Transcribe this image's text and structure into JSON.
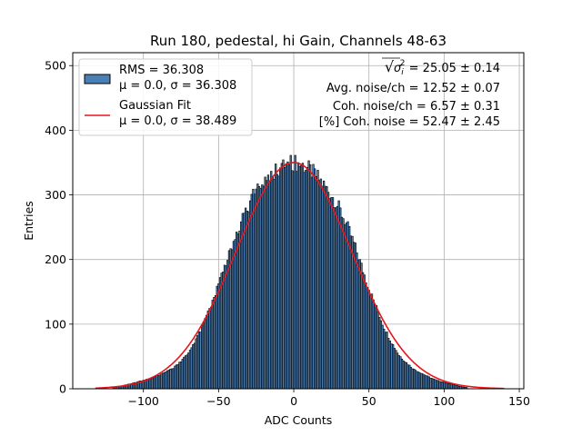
{
  "chart_data": {
    "type": "bar",
    "title": "Run 180, pedestal, hi Gain, Channels 48-63",
    "xlabel": "ADC Counts",
    "ylabel": "Entries",
    "xlim": [
      -147,
      153
    ],
    "ylim": [
      0,
      520
    ],
    "xticks": [
      -100,
      -50,
      0,
      50,
      100,
      150
    ],
    "xtick_labels": [
      "−100",
      "−50",
      "0",
      "50",
      "100",
      "150"
    ],
    "yticks": [
      0,
      100,
      200,
      300,
      400,
      500
    ],
    "ytick_labels": [
      "0",
      "100",
      "200",
      "300",
      "400",
      "500"
    ],
    "grid": true,
    "legend_position": "top-left",
    "series": [
      {
        "name": "histogram",
        "legend_label_1": "RMS = 36.308",
        "legend_label_2": "μ = 0.0, σ = 36.308",
        "color": "#4a7fb5",
        "edge_color": "#000000",
        "bin_width": 1,
        "values": [
          [
            -120,
            2
          ],
          [
            -115,
            4
          ],
          [
            -110,
            7
          ],
          [
            -105,
            10
          ],
          [
            -100,
            13
          ],
          [
            -95,
            16
          ],
          [
            -90,
            21
          ],
          [
            -85,
            26
          ],
          [
            -80,
            32
          ],
          [
            -75,
            42
          ],
          [
            -70,
            55
          ],
          [
            -65,
            75
          ],
          [
            -60,
            100
          ],
          [
            -55,
            130
          ],
          [
            -50,
            160
          ],
          [
            -45,
            195
          ],
          [
            -40,
            230
          ],
          [
            -35,
            260
          ],
          [
            -30,
            285
          ],
          [
            -25,
            305
          ],
          [
            -20,
            320
          ],
          [
            -15,
            335
          ],
          [
            -10,
            342
          ],
          [
            -5,
            347
          ],
          [
            0,
            350
          ],
          [
            5,
            347
          ],
          [
            10,
            340
          ],
          [
            15,
            330
          ],
          [
            20,
            315
          ],
          [
            25,
            300
          ],
          [
            30,
            280
          ],
          [
            35,
            255
          ],
          [
            40,
            225
          ],
          [
            45,
            190
          ],
          [
            50,
            155
          ],
          [
            55,
            125
          ],
          [
            60,
            95
          ],
          [
            65,
            72
          ],
          [
            70,
            52
          ],
          [
            75,
            40
          ],
          [
            80,
            30
          ],
          [
            85,
            24
          ],
          [
            90,
            18
          ],
          [
            95,
            13
          ],
          [
            100,
            10
          ],
          [
            105,
            7
          ],
          [
            110,
            4
          ],
          [
            115,
            2
          ]
        ]
      },
      {
        "name": "gaussian-fit",
        "legend_label_1": "Gaussian Fit",
        "legend_label_2": "μ = 0.0, σ = 38.489",
        "type": "line",
        "color": "#e8151b",
        "mu": 0.0,
        "sigma": 38.489,
        "amplitude": 350,
        "x_range": [
          -132,
          140
        ]
      }
    ],
    "annotations": [
      {
        "pre": "√",
        "sym": "σ",
        "sub": "i",
        "sup": "2",
        "text": " = 25.05 ± 0.14"
      },
      {
        "text": "Avg. noise/ch = 12.52 ± 0.07"
      },
      {
        "text": "Coh. noise/ch = 6.57 ± 0.31"
      },
      {
        "text": "[%] Coh. noise = 52.47 ± 2.45"
      }
    ]
  }
}
